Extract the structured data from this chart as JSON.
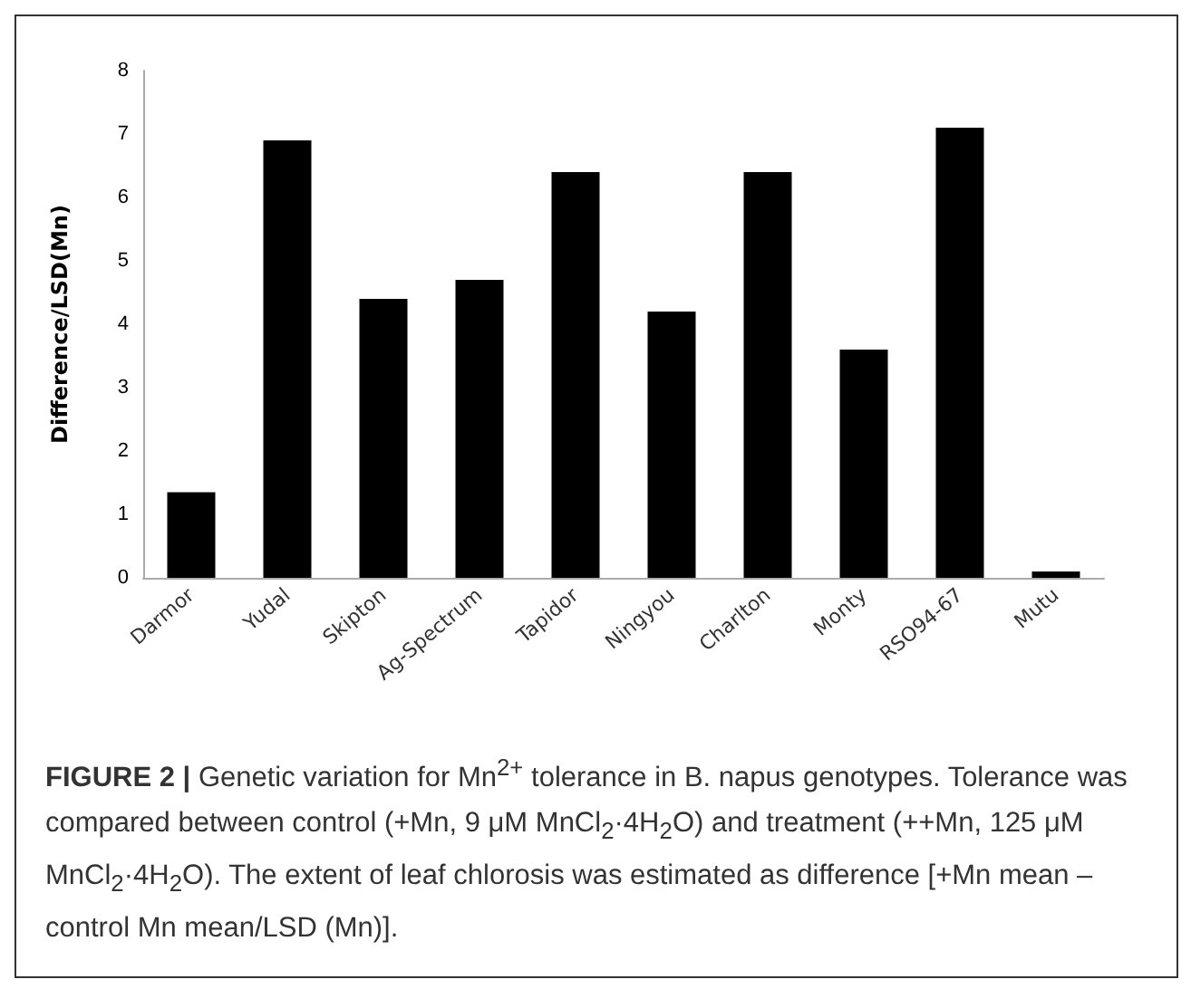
{
  "chart_data": {
    "type": "bar",
    "ylabel": "Difference/LSD(Mn)",
    "categories": [
      "Darmor",
      "Yudal",
      "Skipton",
      "Ag-Spectrum",
      "Tapidor",
      "Ningyou",
      "Charlton",
      "Monty",
      "RSO94-67",
      "Mutu"
    ],
    "values": [
      1.35,
      6.9,
      4.4,
      4.7,
      6.4,
      4.2,
      6.4,
      3.6,
      7.1,
      0.1
    ],
    "color": "#000000",
    "ylim": [
      0,
      8
    ],
    "yticks": [
      0,
      1,
      2,
      3,
      4,
      5,
      6,
      7,
      8
    ],
    "grid": false,
    "annotations": [
      "FIGURE 2 | Genetic variation for Mn$^{2+}$ tolerance in B. napus genotypes. Tolerance was compared between control (+Mn, 9 μM MnCl$_{2}$·4H$_{2}$O) and treatment (++Mn, 125 μM MnCl$_{2}$·4H$_{2}$O). The extent of leaf chlorosis was estimated as difference [+Mn mean – control Mn mean/LSD (Mn)]."
    ]
  }
}
